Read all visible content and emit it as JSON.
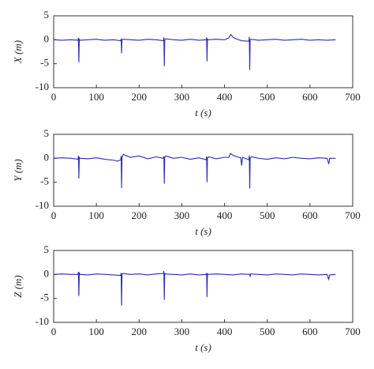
{
  "chart_data": [
    {
      "type": "line",
      "color": "#2a2ab8",
      "xlabel": "t (s)",
      "ylabel": "X (m)",
      "xlim": [
        0,
        700
      ],
      "ylim": [
        -10,
        5
      ],
      "xticks": [
        0,
        100,
        200,
        300,
        400,
        500,
        600,
        700
      ],
      "yticks": [
        5,
        0,
        -5,
        -10
      ],
      "x": [
        0,
        20,
        40,
        57,
        58,
        59,
        60,
        62,
        80,
        100,
        120,
        140,
        157,
        158,
        159,
        160,
        162,
        180,
        200,
        220,
        240,
        257,
        258,
        259,
        260,
        262,
        280,
        300,
        320,
        340,
        357,
        358,
        359,
        360,
        362,
        380,
        400,
        410,
        415,
        420,
        430,
        440,
        457,
        458,
        459,
        460,
        462,
        480,
        500,
        520,
        540,
        560,
        580,
        600,
        620,
        640,
        660
      ],
      "values": [
        0,
        -0.1,
        0,
        -0.1,
        0.4,
        -4.7,
        0.1,
        -0.1,
        0,
        0.1,
        -0.1,
        0,
        -0.2,
        0.2,
        -2.8,
        0,
        0.1,
        0,
        -0.1,
        0.1,
        0,
        -0.2,
        0.5,
        -5.5,
        0,
        0.2,
        0,
        -0.1,
        0.1,
        -0.1,
        0,
        0.5,
        -4.5,
        0.1,
        0,
        0.1,
        0,
        0.4,
        1.1,
        0.5,
        0.1,
        -0.2,
        -0.3,
        0.6,
        -6.3,
        0,
        0.1,
        -0.1,
        0,
        0.1,
        -0.1,
        0,
        0.1,
        -0.1,
        0,
        -0.1,
        0
      ]
    },
    {
      "type": "line",
      "color": "#2a2ab8",
      "xlabel": "t (s)",
      "ylabel": "Y (m)",
      "xlim": [
        0,
        700
      ],
      "ylim": [
        -10,
        5
      ],
      "xticks": [
        0,
        100,
        200,
        300,
        400,
        500,
        600,
        700
      ],
      "yticks": [
        5,
        0,
        -5,
        -10
      ],
      "x": [
        0,
        20,
        40,
        57,
        58,
        59,
        60,
        62,
        80,
        100,
        120,
        140,
        150,
        157,
        158,
        159,
        160,
        163,
        180,
        200,
        220,
        240,
        257,
        258,
        259,
        260,
        263,
        280,
        300,
        320,
        340,
        357,
        358,
        359,
        360,
        363,
        380,
        400,
        410,
        414,
        420,
        430,
        438,
        440,
        442,
        457,
        458,
        459,
        460,
        463,
        480,
        500,
        520,
        540,
        560,
        580,
        600,
        620,
        640,
        644,
        646,
        660
      ],
      "values": [
        0,
        0.1,
        0,
        -0.2,
        0.5,
        -4.2,
        0.2,
        0,
        -0.1,
        0.1,
        -0.2,
        -0.4,
        -0.6,
        -0.3,
        0.5,
        -6.2,
        0.2,
        0.8,
        0.2,
        0.5,
        -0.1,
        0.3,
        0,
        0.4,
        -5.3,
        0.2,
        0.5,
        0,
        0.2,
        -0.2,
        0.1,
        -0.3,
        0.4,
        -5.0,
        0.1,
        0.3,
        -0.1,
        0.2,
        0.2,
        1.0,
        0.6,
        0.3,
        0.1,
        -1.5,
        0.2,
        -0.3,
        0.6,
        -6.3,
        0.1,
        0.3,
        0,
        -0.2,
        0.1,
        -0.1,
        0.2,
        0,
        -0.1,
        0.1,
        0,
        -1.2,
        0,
        0
      ]
    },
    {
      "type": "line",
      "color": "#2a2ab8",
      "xlabel": "t (s)",
      "ylabel": "Z (m)",
      "xlim": [
        0,
        700
      ],
      "ylim": [
        -10,
        5
      ],
      "xticks": [
        0,
        100,
        200,
        300,
        400,
        500,
        600,
        700
      ],
      "yticks": [
        5,
        0,
        -5,
        -10
      ],
      "x": [
        0,
        20,
        40,
        57,
        58,
        59,
        60,
        62,
        80,
        100,
        120,
        140,
        157,
        158,
        159,
        160,
        162,
        180,
        200,
        220,
        240,
        257,
        258,
        259,
        260,
        262,
        280,
        300,
        320,
        340,
        357,
        358,
        359,
        360,
        362,
        380,
        400,
        420,
        440,
        459,
        460,
        461,
        480,
        500,
        520,
        540,
        560,
        580,
        600,
        620,
        640,
        644,
        646,
        660
      ],
      "values": [
        0,
        0.1,
        0,
        0,
        0.5,
        -4.5,
        0.3,
        0,
        -0.1,
        0.1,
        0,
        -0.1,
        -0.2,
        0.3,
        -6.5,
        0.1,
        0.2,
        0,
        0.1,
        -0.1,
        0.1,
        0.2,
        0.7,
        -5.3,
        0.2,
        0.1,
        0,
        -0.1,
        0.1,
        -0.1,
        0,
        0.3,
        -4.7,
        0.1,
        0,
        0.1,
        0,
        -0.1,
        0.1,
        0,
        -0.5,
        0.1,
        0,
        -0.1,
        0.1,
        0,
        -0.1,
        0.1,
        0,
        -0.1,
        0,
        -1.0,
        -0.1,
        0
      ]
    }
  ]
}
